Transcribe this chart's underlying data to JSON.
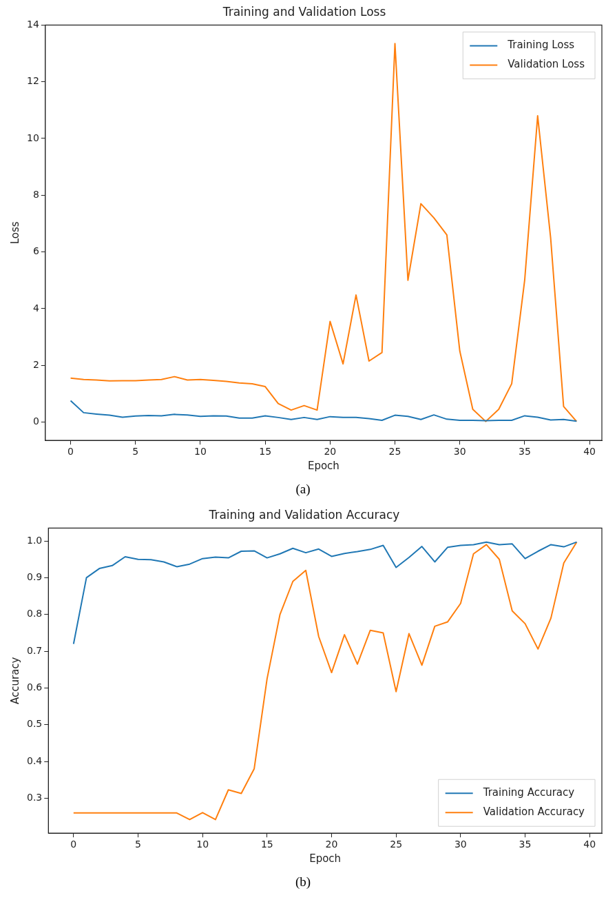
{
  "chart_data": [
    {
      "type": "line",
      "title": "Training and Validation Loss",
      "xlabel": "Epoch",
      "ylabel": "Loss",
      "x": [
        0,
        1,
        2,
        3,
        4,
        5,
        6,
        7,
        8,
        9,
        10,
        11,
        12,
        13,
        14,
        15,
        16,
        17,
        18,
        19,
        20,
        21,
        22,
        23,
        24,
        25,
        26,
        27,
        28,
        29,
        30,
        31,
        32,
        33,
        34,
        35,
        36,
        37,
        38,
        39
      ],
      "series": [
        {
          "name": "Training Loss",
          "color": "#1f77b4",
          "values": [
            0.75,
            0.33,
            0.28,
            0.24,
            0.17,
            0.21,
            0.23,
            0.22,
            0.27,
            0.25,
            0.2,
            0.22,
            0.21,
            0.14,
            0.14,
            0.22,
            0.16,
            0.09,
            0.16,
            0.09,
            0.19,
            0.16,
            0.16,
            0.12,
            0.06,
            0.24,
            0.2,
            0.09,
            0.25,
            0.1,
            0.06,
            0.06,
            0.05,
            0.06,
            0.06,
            0.22,
            0.17,
            0.07,
            0.09,
            0.03
          ]
        },
        {
          "name": "Validation Loss",
          "color": "#ff7f0e",
          "values": [
            1.55,
            1.5,
            1.48,
            1.45,
            1.46,
            1.46,
            1.48,
            1.5,
            1.6,
            1.48,
            1.5,
            1.47,
            1.43,
            1.38,
            1.35,
            1.25,
            0.65,
            0.42,
            0.58,
            0.42,
            3.55,
            2.05,
            4.48,
            2.15,
            2.45,
            13.35,
            5.0,
            7.7,
            7.2,
            6.6,
            2.5,
            0.45,
            0.02,
            0.45,
            1.35,
            5.0,
            10.8,
            6.5,
            0.55,
            0.02
          ]
        }
      ],
      "xlim": [
        -1.95,
        40.95
      ],
      "xticks": [
        0,
        5,
        10,
        15,
        20,
        25,
        30,
        35,
        40
      ],
      "ylim": [
        -0.65,
        14
      ],
      "yticks": [
        0,
        2,
        4,
        6,
        8,
        10,
        12,
        14
      ],
      "grid": false,
      "legend": "top right",
      "marker": "none",
      "line_style": "solid",
      "annotations": [
        "(a)"
      ]
    },
    {
      "type": "line",
      "title": "Training and Validation Accuracy",
      "xlabel": "Epoch",
      "ylabel": "Accuracy",
      "x": [
        0,
        1,
        2,
        3,
        4,
        5,
        6,
        7,
        8,
        9,
        10,
        11,
        12,
        13,
        14,
        15,
        16,
        17,
        18,
        19,
        20,
        21,
        22,
        23,
        24,
        25,
        26,
        27,
        28,
        29,
        30,
        31,
        32,
        33,
        34,
        35,
        36,
        37,
        38,
        39
      ],
      "series": [
        {
          "name": "Training Accuracy",
          "color": "#1f77b4",
          "values": [
            0.72,
            0.9,
            0.925,
            0.933,
            0.957,
            0.95,
            0.949,
            0.943,
            0.93,
            0.937,
            0.952,
            0.956,
            0.954,
            0.972,
            0.973,
            0.954,
            0.965,
            0.98,
            0.968,
            0.978,
            0.958,
            0.966,
            0.971,
            0.977,
            0.988,
            0.928,
            0.955,
            0.985,
            0.943,
            0.983,
            0.988,
            0.99,
            0.997,
            0.99,
            0.992,
            0.952,
            0.972,
            0.99,
            0.984,
            0.997
          ]
        },
        {
          "name": "Validation Accuracy",
          "color": "#ff7f0e",
          "values": [
            0.26,
            0.26,
            0.26,
            0.26,
            0.26,
            0.26,
            0.26,
            0.26,
            0.26,
            0.242,
            0.261,
            0.242,
            0.323,
            0.313,
            0.38,
            0.625,
            0.8,
            0.89,
            0.92,
            0.74,
            0.642,
            0.745,
            0.665,
            0.757,
            0.75,
            0.59,
            0.748,
            0.662,
            0.768,
            0.78,
            0.83,
            0.965,
            0.99,
            0.95,
            0.81,
            0.775,
            0.706,
            0.79,
            0.94,
            0.997
          ]
        }
      ],
      "xlim": [
        -1.95,
        40.95
      ],
      "xticks": [
        0,
        5,
        10,
        15,
        20,
        25,
        30,
        35,
        40
      ],
      "ylim": [
        0.205,
        1.035
      ],
      "yticks": [
        0.3,
        0.4,
        0.5,
        0.6,
        0.7,
        0.8,
        0.9,
        {
          "value": 1.0,
          "label": "1.0"
        }
      ],
      "grid": false,
      "legend": "bottom right",
      "marker": "none",
      "line_style": "solid",
      "annotations": [
        "(b)"
      ]
    }
  ]
}
